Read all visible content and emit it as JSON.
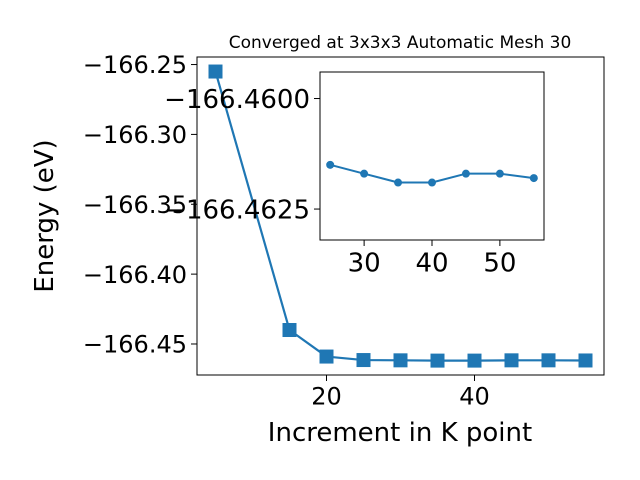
{
  "chart_data": [
    {
      "type": "line",
      "title": "Converged at 3x3x3 Automatic Mesh 30",
      "xlabel": "Increment in K point",
      "ylabel": "Energy (eV)",
      "x": [
        5,
        15,
        20,
        25,
        30,
        35,
        40,
        45,
        50,
        55
      ],
      "series": [
        {
          "values": [
            -166.255,
            -166.44,
            -166.459,
            -166.4615,
            -166.4617,
            -166.4619,
            -166.4619,
            -166.4617,
            -166.4617,
            -166.4618
          ]
        }
      ],
      "xticks": [
        20,
        40
      ],
      "yticks": [
        -166.25,
        -166.3,
        -166.35,
        -166.4,
        -166.45
      ],
      "ytick_labels": [
        "−166.25",
        "−166.30",
        "−166.35",
        "−166.40",
        "−166.45"
      ],
      "xlim": [
        2.5,
        57.5
      ],
      "ylim": [
        -166.4722,
        -166.2446
      ],
      "grid": false,
      "marker": "square",
      "color": "#1f77b4"
    },
    {
      "type": "line",
      "title": "",
      "xlabel": "",
      "ylabel": "",
      "x": [
        25,
        30,
        35,
        40,
        45,
        50,
        55
      ],
      "series": [
        {
          "values": [
            -166.4615,
            -166.4617,
            -166.4619,
            -166.4619,
            -166.4617,
            -166.4617,
            -166.4618
          ]
        }
      ],
      "xticks": [
        30,
        40,
        50
      ],
      "yticks": [
        -166.4625,
        -166.46
      ],
      "ytick_labels": [
        "−166.4625",
        "−166.4600"
      ],
      "xlim": [
        23.5,
        56.5
      ],
      "ylim": [
        -166.4632,
        -166.4594
      ],
      "grid": false,
      "marker": "circle",
      "color": "#1f77b4"
    }
  ]
}
